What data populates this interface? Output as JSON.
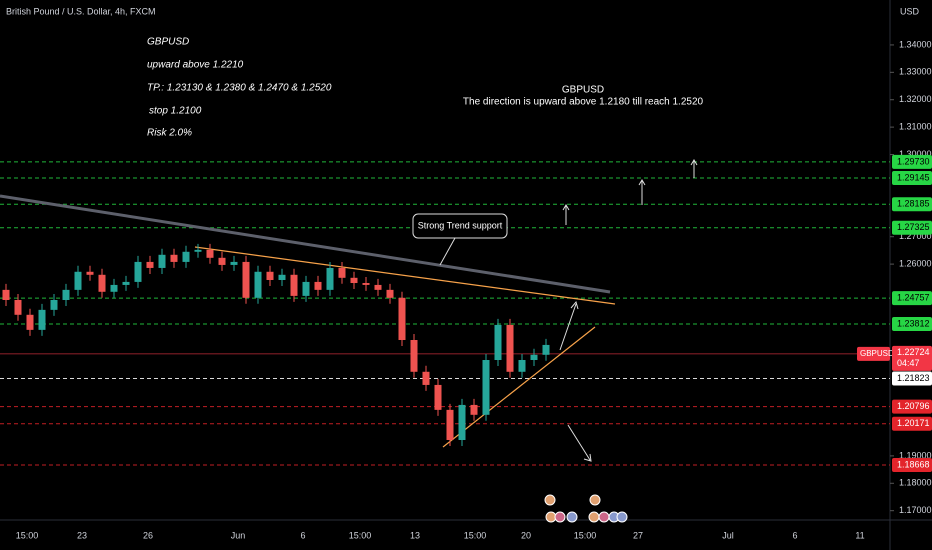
{
  "header": {
    "symbol": "British Pound / U.S. Dollar, 4h, FXCM",
    "currency": "USD"
  },
  "notes": {
    "left": [
      "GBPUSD",
      "upward above 1.2210",
      "TP.: 1.23130 & 1.2380  & 1.2470 & 1.2520",
      "stop 1.2100",
      "Risk 2.0%"
    ],
    "center": [
      "GBPUSD",
      "The direction is upward above 1.2180 till reach 1.2520"
    ],
    "callout": "Strong Trend support"
  },
  "chart_data": {
    "type": "candlestick",
    "ylim": [
      1.1666,
      1.3564
    ],
    "yticks": [
      {
        "value": 1.34,
        "label": "1.34000"
      },
      {
        "value": 1.33,
        "label": "1.33000"
      },
      {
        "value": 1.32,
        "label": "1.32000"
      },
      {
        "value": 1.31,
        "label": "1.31000"
      },
      {
        "value": 1.3,
        "label": "1.30000"
      },
      {
        "value": 1.27,
        "label": "1.27000"
      },
      {
        "value": 1.26,
        "label": "1.26000"
      },
      {
        "value": 1.19,
        "label": "1.19000"
      },
      {
        "value": 1.18,
        "label": "1.18000"
      },
      {
        "value": 1.17,
        "label": "1.17000"
      }
    ],
    "xticks": [
      "15:00",
      "23",
      "26",
      "Jun",
      "6",
      "15:00",
      "13",
      "15:00",
      "20",
      "15:00",
      "27",
      "Jul",
      "6",
      "11"
    ],
    "open": 1.2506,
    "closes": [
      1.2469,
      1.2415,
      1.236,
      1.2433,
      1.2469,
      1.2506,
      1.2572,
      1.2561,
      1.2499,
      1.2524,
      1.2535,
      1.2608,
      1.2586,
      1.2634,
      1.2608,
      1.2645,
      1.2652,
      1.2623,
      1.2597,
      1.2608,
      1.2477,
      1.2572,
      1.2542,
      1.2561,
      1.2484,
      1.2535,
      1.2506,
      1.2586,
      1.255,
      1.2531,
      1.2524,
      1.2506,
      1.2477,
      1.2323,
      1.2207,
      1.2159,
      1.2068,
      1.1958,
      1.2086,
      1.205,
      1.225,
      1.2378,
      1.2207,
      1.225,
      1.2269,
      1.2305
    ],
    "up_color": "#26a69a",
    "down_color": "#ef5350",
    "levels": [
      {
        "value": 1.2973,
        "label": "1.29730",
        "color": "#27d645"
      },
      {
        "value": 1.29145,
        "label": "1.29145",
        "color": "#27d645"
      },
      {
        "value": 1.28185,
        "label": "1.28185",
        "color": "#27d645"
      },
      {
        "value": 1.27325,
        "label": "1.27325",
        "color": "#27d645"
      },
      {
        "value": 1.24757,
        "label": "1.24757",
        "color": "#27d645"
      },
      {
        "value": 1.23812,
        "label": "1.23812",
        "color": "#27d645"
      },
      {
        "value": 1.21823,
        "label": "1.21823",
        "color": "#ffffff"
      },
      {
        "value": 1.20796,
        "label": "1.20796",
        "color": "#e3242b"
      },
      {
        "value": 1.20171,
        "label": "1.20171",
        "color": "#e3242b"
      },
      {
        "value": 1.18668,
        "label": "1.18668",
        "color": "#e3242b"
      }
    ],
    "current": {
      "name": "GBPUSD",
      "value": 1.22724,
      "label": "1.22724",
      "countdown": "04:47",
      "color": "#f23645"
    }
  }
}
